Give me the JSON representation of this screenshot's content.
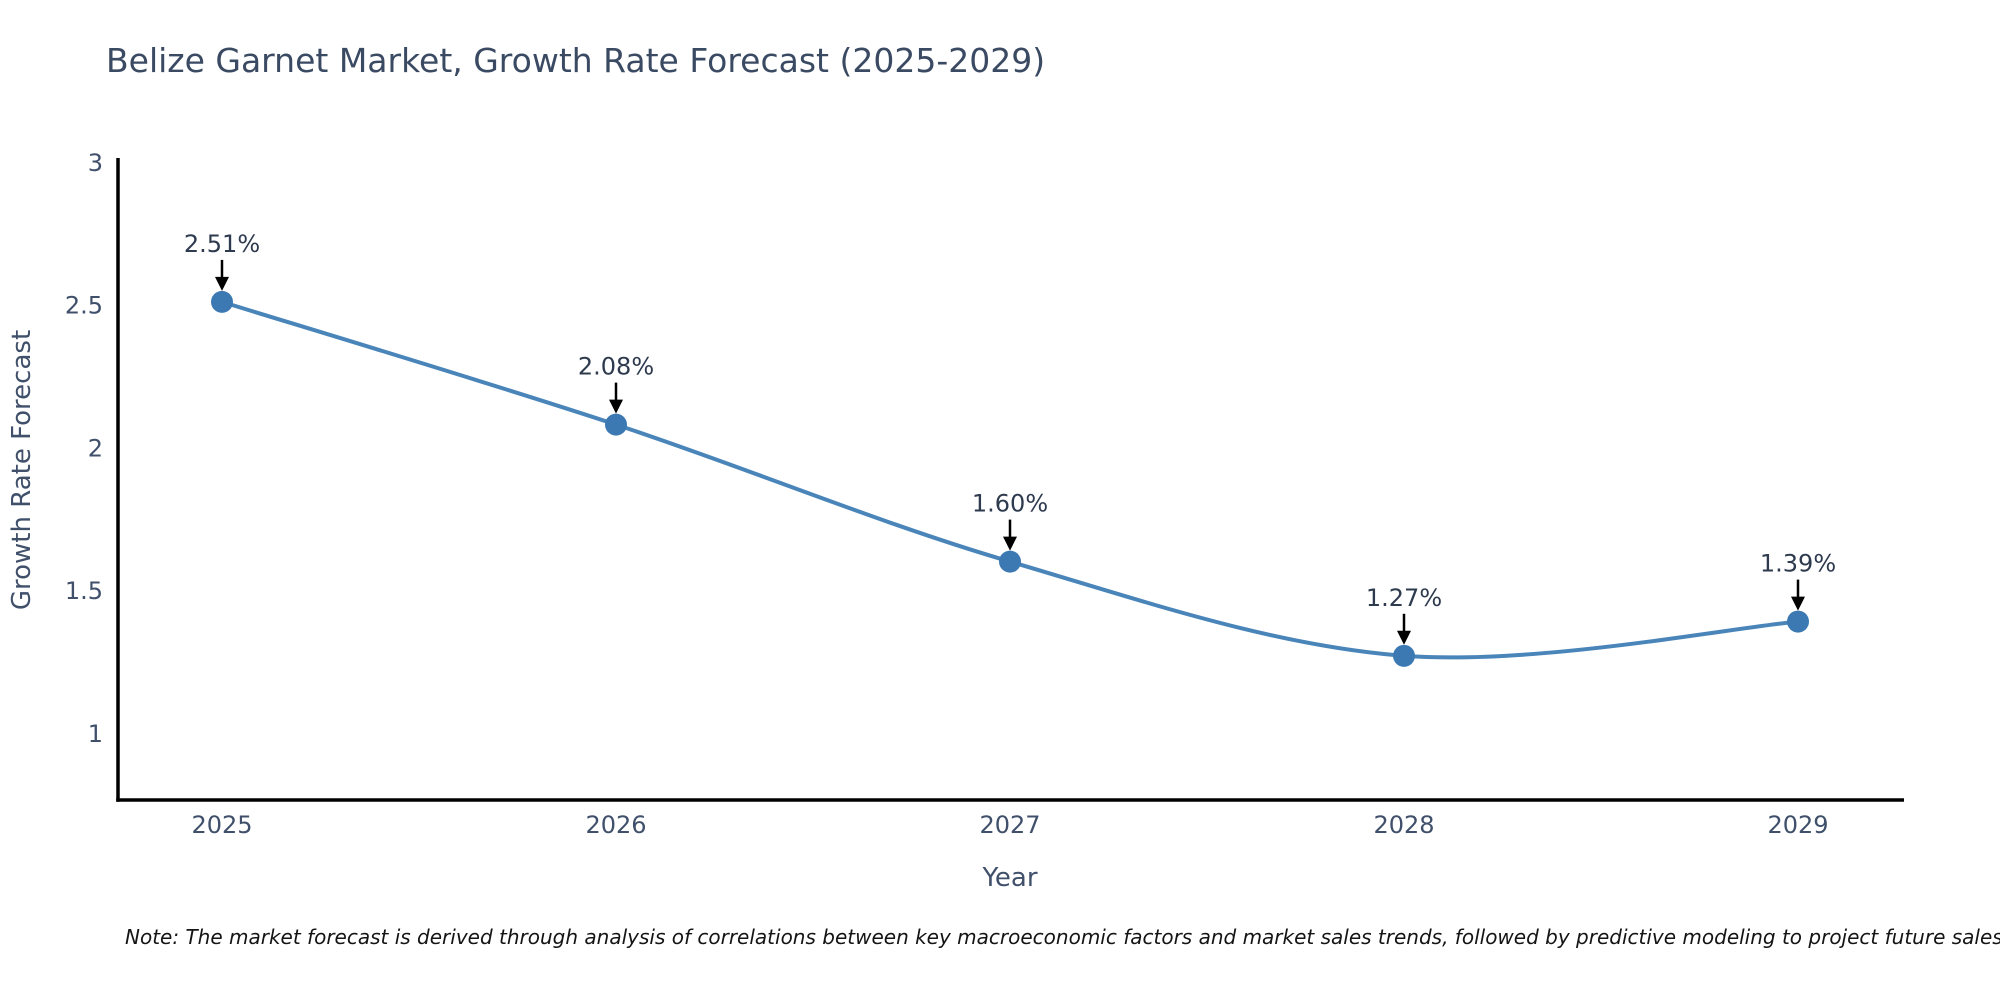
{
  "chart_data": {
    "type": "line",
    "title": "Belize Garnet Market, Growth Rate Forecast (2025-2029)",
    "x": [
      "2025",
      "2026",
      "2027",
      "2028",
      "2029"
    ],
    "series": [
      {
        "name": "Growth Rate Forecast",
        "values": [
          2.51,
          2.08,
          1.6,
          1.27,
          1.39
        ]
      }
    ],
    "point_labels": [
      "2.51%",
      "2.08%",
      "1.60%",
      "1.27%",
      "1.39%"
    ],
    "xlabel": "Year",
    "ylabel": "Growth Rate Forecast",
    "yticks": [
      "3",
      "2.5",
      "2",
      "1.5",
      "1"
    ],
    "ytick_values": [
      3,
      2.5,
      2,
      1.5,
      1
    ],
    "ylim": [
      0.765,
      3.014
    ],
    "grid": false,
    "legend": "none",
    "annotation_style": "value labels above points with black down arrows",
    "styles": {
      "line_color": "#4a85ba",
      "marker_color": "#3c79b3",
      "axis_color": "#000000",
      "tick_label_color": "#40506b",
      "axis_title_color": "#40506b",
      "annotation_color": "#2e3a4e",
      "arrow_color": "#000000",
      "background": "#ffffff"
    }
  },
  "note": "Note: The market forecast is derived through analysis of correlations between key macroeconomic factors and market sales trends, followed by predictive modeling to project future sales"
}
